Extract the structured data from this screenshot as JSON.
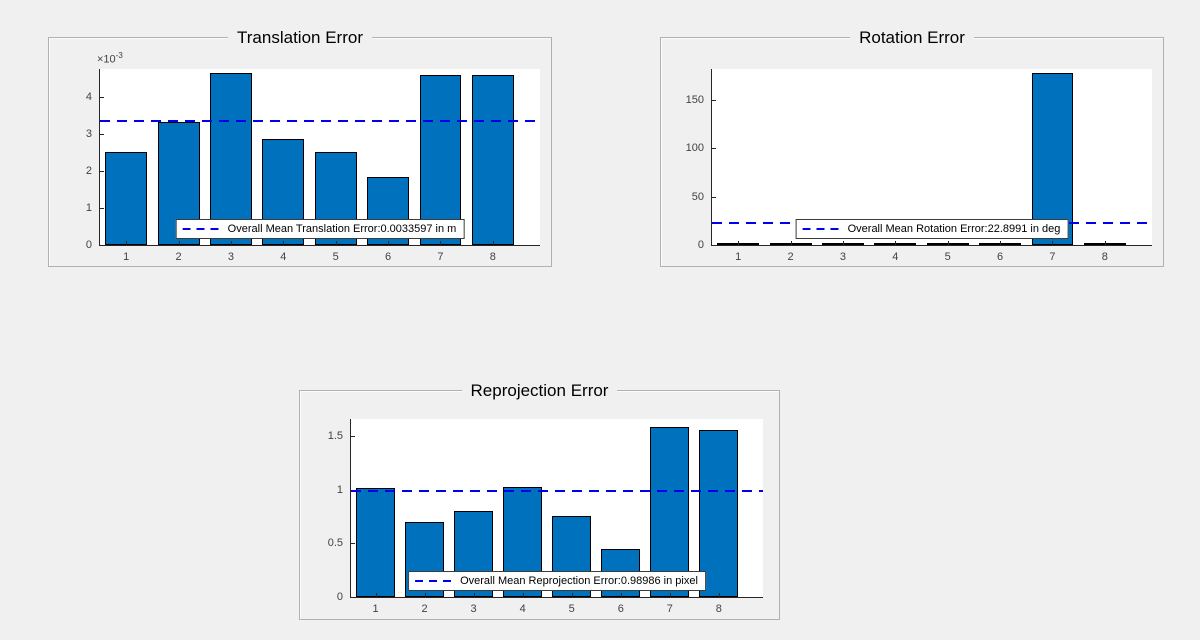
{
  "figure": {
    "background": "#f0f0f0"
  },
  "colors": {
    "bar_fill": "#0072BD",
    "bar_edge": "#000000",
    "mean_line": "#0000EE",
    "axes_background": "#ffffff",
    "tick_label": "#424242",
    "panel_border": "#b1b1b1",
    "legend_border": "#3c3c3c",
    "legend_background": "#ffffff",
    "title_color": "#000000"
  },
  "chart_data": [
    {
      "type": "bar",
      "title": "Translation Error",
      "categories": [
        "1",
        "2",
        "3",
        "4",
        "5",
        "6",
        "7",
        "8"
      ],
      "values": [
        2.5,
        3.33,
        4.65,
        2.86,
        2.5,
        1.83,
        4.6,
        4.58
      ],
      "values_note": "bar heights in units of 1e-3 m (axis shows x10^-3 multiplier)",
      "exponent_label": {
        "base": "×10",
        "power": "-3"
      },
      "mean_value": 3.3597,
      "legend_label": "Overall Mean Translation Error:0.0033597 in m",
      "ylabel": "",
      "xlabel": "",
      "ylim": [
        0,
        4.75
      ],
      "xlim": [
        0.5,
        8.9
      ],
      "bar_width": 0.8,
      "ytick_values": [
        0,
        1,
        2,
        3,
        4
      ],
      "ytick_labels": [
        "0",
        "1",
        "2",
        "3",
        "4"
      ],
      "grid": false,
      "legend_position": "south-inside"
    },
    {
      "type": "bar",
      "title": "Rotation Error",
      "categories": [
        "1",
        "2",
        "3",
        "4",
        "5",
        "6",
        "7",
        "8"
      ],
      "values": [
        0.5,
        0.5,
        0.5,
        0.5,
        0.5,
        2.0,
        178.2,
        0.5
      ],
      "values_note": "bar heights in deg",
      "exponent_label": null,
      "mean_value": 22.8991,
      "legend_label": "Overall Mean Rotation Error:22.8991 in deg",
      "ylabel": "",
      "xlabel": "",
      "ylim": [
        0,
        182
      ],
      "xlim": [
        0.5,
        8.9
      ],
      "bar_width": 0.8,
      "ytick_values": [
        0,
        50,
        100,
        150
      ],
      "ytick_labels": [
        "0",
        "50",
        "100",
        "150"
      ],
      "grid": false,
      "legend_position": "south-inside"
    },
    {
      "type": "bar",
      "title": "Reprojection Error",
      "categories": [
        "1",
        "2",
        "3",
        "4",
        "5",
        "6",
        "7",
        "8"
      ],
      "values": [
        1.02,
        0.7,
        0.8,
        1.03,
        0.76,
        0.45,
        1.59,
        1.56
      ],
      "values_note": "bar heights in pixels",
      "exponent_label": null,
      "mean_value": 0.98986,
      "legend_label": "Overall Mean Reprojection Error:0.98986 in pixel",
      "ylabel": "",
      "xlabel": "",
      "ylim": [
        0,
        1.66
      ],
      "xlim": [
        0.5,
        8.9
      ],
      "bar_width": 0.8,
      "ytick_values": [
        0,
        0.5,
        1,
        1.5
      ],
      "ytick_labels": [
        "0",
        "0.5",
        "1",
        "1.5"
      ],
      "grid": false,
      "legend_position": "south-inside"
    }
  ]
}
